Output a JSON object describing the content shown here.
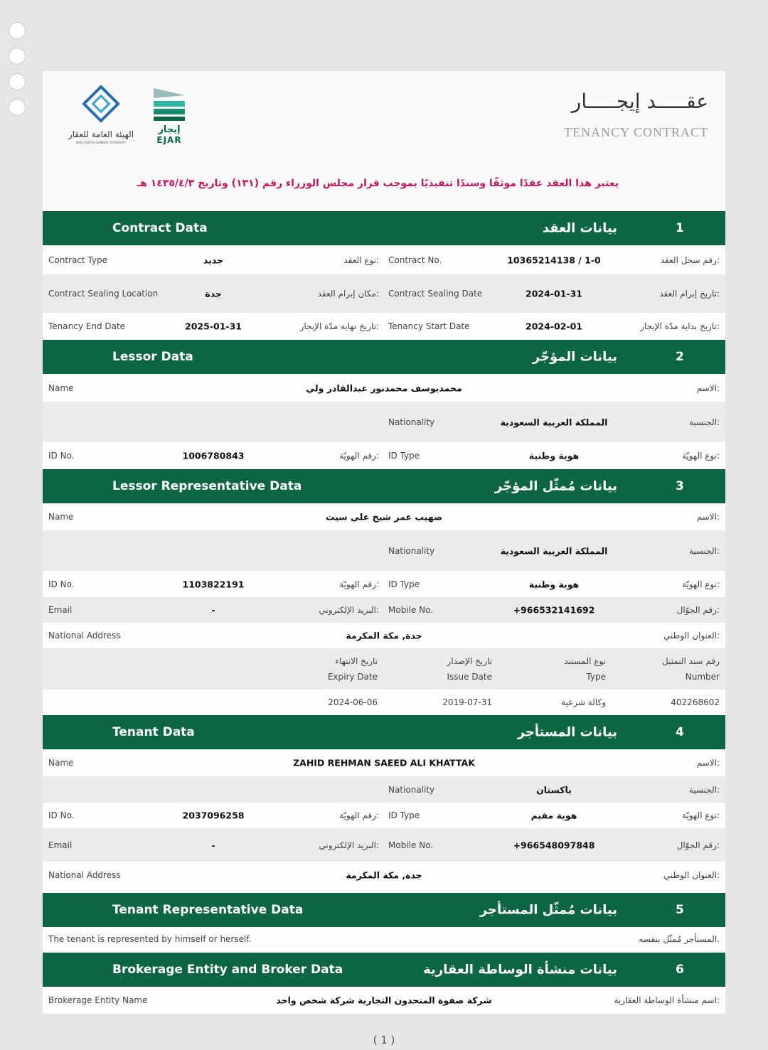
{
  "header": {
    "title_ar": "عقـــــد إيجـــــار",
    "title_en": "TENANCY CONTRACT",
    "logo_ejar_ar": "إيجار",
    "logo_ejar_en": "EJAR",
    "logo_rega_ar": "الهيئة العامة للعقار",
    "logo_rega_en": "REAL ESTATE GENERAL AUTHORITY",
    "notice": "يعتبر هذا العقد عقدًا موثقًا وسندًا تنفيذيًا بموجب قرار مجلس الوزراء رقم (١٣١) وتاريخ ١٤٣٥/٤/٣ هـ"
  },
  "sections": [
    {
      "num": "1",
      "en": "Contract Data",
      "ar": "بيانات العقد"
    },
    {
      "num": "2",
      "en": "Lessor Data",
      "ar": "بيانات المؤجّر"
    },
    {
      "num": "3",
      "en": "Lessor Representative Data",
      "ar": "بيانات مُمثّل المؤجّر"
    },
    {
      "num": "4",
      "en": "Tenant Data",
      "ar": "بيانات المستأجر"
    },
    {
      "num": "5",
      "en": "Tenant Representative Data",
      "ar": "بيانات مُمثّل المستأجر"
    },
    {
      "num": "6",
      "en": "Brokerage Entity and Broker Data",
      "ar": "بيانات منشأة الوساطة العقارية"
    }
  ],
  "contract": {
    "type_en": "Contract Type",
    "type_val": "جديد",
    "type_ar": "نوع العقد:",
    "no_en": "Contract No.",
    "no_val": "10365214138 / 1-0",
    "no_ar": "رقم سجل العقد:",
    "loc_en": "Contract Sealing Location",
    "loc_val": "جدة",
    "loc_ar": "مكان إبرام العقد:",
    "seal_en": "Contract Sealing Date",
    "seal_val": "2024-01-31",
    "seal_ar": "تاريخ إبرام العقد:",
    "end_en": "Tenancy End Date",
    "end_val": "2025-01-31",
    "end_ar": "تاريخ نهاية مدّة الإيجار:",
    "start_en": "Tenancy Start Date",
    "start_val": "2024-02-01",
    "start_ar": "تاريخ بداية مدّة الإيجار:"
  },
  "labels": {
    "name_en": "Name",
    "name_ar": "الاسم:",
    "nat_en": "Nationality",
    "nat_ar": "الجنسية:",
    "idno_en": "ID No.",
    "idno_ar": "رقم الهويّة:",
    "idtype_en": "ID Type",
    "idtype_ar": "نوع الهويّة:",
    "email_en": "Email",
    "email_ar": "البريد الإلكتروني:",
    "mobile_en": "Mobile No.",
    "mobile_ar": "رقم الجوّال:",
    "addr_en": "National Address",
    "addr_ar": "العنوان الوطني:"
  },
  "lessor": {
    "name": "محمديوسف محمدنور عبدالقادر ولي",
    "nationality": "المملكة العربية السعودية",
    "id_no": "1006780843",
    "id_type": "هوية وطنية"
  },
  "lessor_rep": {
    "name": "صهيب عمر شيخ علي سيت",
    "nationality": "المملكة العربية السعودية",
    "id_no": "1103822191",
    "id_type": "هوية وطنية",
    "email": "-",
    "mobile": "+966532141692",
    "address": "جدة, مكة المكرمة",
    "doc_headers": [
      {
        "ar": "رقم سند التمثيل",
        "en": "Number"
      },
      {
        "ar": "نوع المستند",
        "en": "Type"
      },
      {
        "ar": "تاريخ الإصدار",
        "en": "Issue Date"
      },
      {
        "ar": "تاريخ الانتهاء",
        "en": "Expiry Date"
      }
    ],
    "doc_values": [
      "402268602",
      "وكالة شرعية",
      "2019-07-31",
      "2024-06-06"
    ]
  },
  "tenant": {
    "name": "ZAHID REHMAN SAEED ALI KHATTAK",
    "nationality": "باكستان",
    "id_no": "2037096258",
    "id_type": "هوية مقيم",
    "email": "-",
    "mobile": "+966548097848",
    "address": "جدة, مكة المكرمة"
  },
  "tenant_rep": {
    "en": "The tenant is represented by himself or herself.",
    "ar": "المستأجر مُمثّل بنفسه."
  },
  "brokerage": {
    "label_en": "Brokerage Entity Name",
    "value": "شركة صفوة المتحدون التجارية شركة شخص واحد",
    "label_ar": "اسم منشأة الوساطة العقارية:"
  },
  "page_number": "( 1 )",
  "colors": {
    "section": "#0c6644",
    "notice": "#c2185b"
  }
}
